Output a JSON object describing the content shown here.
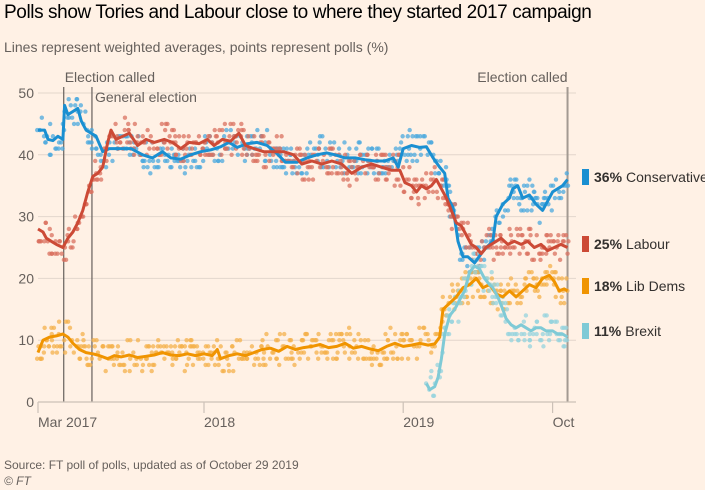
{
  "header": {
    "title": "Polls show Tories and Labour close to where they started 2017 campaign",
    "subtitle": "Lines represent weighted averages, points represent polls (%)"
  },
  "footer": {
    "source": "Source: FT poll of polls, updated as of October 29 2019",
    "copyright": "© FT"
  },
  "chart_data": {
    "type": "line",
    "title": "Polls show Tories and Labour close to where they started 2017 campaign",
    "subtitle": "Lines represent weighted averages, points represent polls (%)",
    "xlabel": "",
    "ylabel": "%",
    "x_unit": "months since 1 Mar 2017",
    "xlim": [
      0,
      31.9
    ],
    "ylim": [
      0,
      50
    ],
    "yticks": [
      0,
      10,
      20,
      30,
      40,
      50
    ],
    "xticks": [
      {
        "label": "Mar 2017",
        "x": 0
      },
      {
        "label": "2018",
        "x": 10
      },
      {
        "label": "2019",
        "x": 22
      },
      {
        "label": "Oct",
        "x": 31
      }
    ],
    "grid": true,
    "legend_placement": "right",
    "annotations": [
      {
        "label": "Election called",
        "x": 1.55,
        "align": "start"
      },
      {
        "label": "General election",
        "x": 3.25,
        "align": "start"
      },
      {
        "label": "Election called",
        "x": 31.9,
        "align": "end"
      }
    ],
    "series": [
      {
        "name": "Conservative",
        "legend_value": "36%",
        "color": "#1A8FD1",
        "dot_color": "#4BA8DE",
        "start_x": 0,
        "points": [
          [
            0,
            44
          ],
          [
            0.4,
            44
          ],
          [
            0.6,
            42.5
          ],
          [
            0.9,
            42.3
          ],
          [
            1.2,
            43
          ],
          [
            1.5,
            42.5
          ],
          [
            1.6,
            48
          ],
          [
            1.8,
            46.5
          ],
          [
            2.1,
            47
          ],
          [
            2.4,
            47.5
          ],
          [
            2.6,
            45.5
          ],
          [
            2.9,
            44
          ],
          [
            3.2,
            43.5
          ],
          [
            3.5,
            43
          ],
          [
            3.9,
            40.5
          ],
          [
            4.3,
            41
          ],
          [
            5,
            41
          ],
          [
            5.6,
            41
          ],
          [
            6.3,
            40
          ],
          [
            6.9,
            39.5
          ],
          [
            7.5,
            40.5
          ],
          [
            8,
            39.5
          ],
          [
            8.6,
            39.3
          ],
          [
            9.2,
            40
          ],
          [
            9.8,
            40.5
          ],
          [
            10.4,
            40.8
          ],
          [
            11,
            41.3
          ],
          [
            11.5,
            42
          ],
          [
            12,
            41.2
          ],
          [
            12.6,
            41.8
          ],
          [
            13.2,
            42
          ],
          [
            13.8,
            41.5
          ],
          [
            14.4,
            40.2
          ],
          [
            14.9,
            38.8
          ],
          [
            15.6,
            38.8
          ],
          [
            16.2,
            39.5
          ],
          [
            16.8,
            40
          ],
          [
            17.4,
            40.3
          ],
          [
            17.9,
            40
          ],
          [
            18.5,
            39.5
          ],
          [
            19.1,
            39.5
          ],
          [
            19.7,
            39.2
          ],
          [
            20.3,
            39
          ],
          [
            20.9,
            39
          ],
          [
            21.4,
            39.5
          ],
          [
            21.7,
            38
          ],
          [
            22,
            41
          ],
          [
            22.5,
            41.5
          ],
          [
            23,
            41.2
          ],
          [
            23.4,
            41.3
          ],
          [
            23.8,
            39.5
          ],
          [
            24.2,
            38
          ],
          [
            24.5,
            37
          ],
          [
            24.7,
            33
          ],
          [
            25,
            31.5
          ],
          [
            25.3,
            26
          ],
          [
            25.6,
            23.5
          ],
          [
            25.9,
            23.5
          ],
          [
            26.3,
            22.5
          ],
          [
            26.7,
            24
          ],
          [
            27,
            25
          ],
          [
            27.4,
            26
          ],
          [
            27.6,
            30
          ],
          [
            28,
            32
          ],
          [
            28.4,
            33
          ],
          [
            28.6,
            34.5
          ],
          [
            28.9,
            35
          ],
          [
            29.2,
            33
          ],
          [
            29.6,
            33.5
          ],
          [
            30,
            32
          ],
          [
            30.4,
            31
          ],
          [
            30.7,
            32.5
          ],
          [
            31,
            34
          ],
          [
            31.3,
            34.5
          ],
          [
            31.6,
            35
          ],
          [
            31.9,
            36
          ]
        ]
      },
      {
        "name": "Labour",
        "legend_value": "25%",
        "color": "#CC4A36",
        "dot_color": "#D9705F",
        "start_x": 0,
        "points": [
          [
            0,
            28
          ],
          [
            0.3,
            27.5
          ],
          [
            0.5,
            26.5
          ],
          [
            0.8,
            26
          ],
          [
            1.1,
            25.5
          ],
          [
            1.5,
            25
          ],
          [
            1.8,
            26.5
          ],
          [
            2.1,
            27.5
          ],
          [
            2.4,
            29
          ],
          [
            2.7,
            31
          ],
          [
            3,
            34
          ],
          [
            3.3,
            36.5
          ],
          [
            3.6,
            37
          ],
          [
            3.9,
            38
          ],
          [
            4.2,
            42
          ],
          [
            4.4,
            44
          ],
          [
            4.7,
            42.5
          ],
          [
            5.1,
            43
          ],
          [
            5.5,
            43.5
          ],
          [
            6,
            41.5
          ],
          [
            6.5,
            42.5
          ],
          [
            7,
            42
          ],
          [
            7.6,
            42.5
          ],
          [
            8.1,
            42
          ],
          [
            8.6,
            41
          ],
          [
            9.1,
            42
          ],
          [
            9.7,
            41.8
          ],
          [
            10.2,
            42.5
          ],
          [
            10.6,
            41.5
          ],
          [
            11.1,
            42.5
          ],
          [
            11.6,
            42.2
          ],
          [
            12.1,
            43.5
          ],
          [
            12.5,
            41.5
          ],
          [
            13,
            41
          ],
          [
            13.6,
            40.5
          ],
          [
            14.2,
            40.5
          ],
          [
            14.8,
            40.5
          ],
          [
            15.4,
            40
          ],
          [
            15.9,
            38.5
          ],
          [
            16.5,
            39
          ],
          [
            17.1,
            38.5
          ],
          [
            17.7,
            39
          ],
          [
            18.3,
            38.5
          ],
          [
            18.9,
            37
          ],
          [
            19.5,
            38
          ],
          [
            20.1,
            38.5
          ],
          [
            20.7,
            38
          ],
          [
            21.3,
            37.5
          ],
          [
            21.8,
            37.5
          ],
          [
            22.1,
            35.5
          ],
          [
            22.5,
            35
          ],
          [
            22.8,
            34
          ],
          [
            23.1,
            35
          ],
          [
            23.4,
            34.5
          ],
          [
            23.7,
            35
          ],
          [
            24,
            36
          ],
          [
            24.3,
            34.5
          ],
          [
            24.6,
            33
          ],
          [
            24.9,
            31
          ],
          [
            25.2,
            29
          ],
          [
            25.5,
            28.5
          ],
          [
            25.8,
            27
          ],
          [
            26.1,
            25.5
          ],
          [
            26.4,
            25
          ],
          [
            26.7,
            24
          ],
          [
            27,
            25
          ],
          [
            27.3,
            25.5
          ],
          [
            27.6,
            26
          ],
          [
            27.9,
            26.5
          ],
          [
            28.3,
            25.5
          ],
          [
            28.7,
            26
          ],
          [
            29.1,
            25.5
          ],
          [
            29.5,
            26
          ],
          [
            29.9,
            25
          ],
          [
            30.3,
            25.5
          ],
          [
            30.7,
            24.5
          ],
          [
            31.1,
            25
          ],
          [
            31.5,
            25.5
          ],
          [
            31.9,
            25
          ]
        ]
      },
      {
        "name": "Lib Dems",
        "legend_value": "18%",
        "color": "#F09400",
        "dot_color": "#F4B04B",
        "start_x": 0,
        "points": [
          [
            0,
            8
          ],
          [
            0.3,
            10
          ],
          [
            0.7,
            10.5
          ],
          [
            1.1,
            10.7
          ],
          [
            1.5,
            11
          ],
          [
            1.8,
            10.5
          ],
          [
            2.1,
            9.5
          ],
          [
            2.5,
            8.5
          ],
          [
            2.9,
            8
          ],
          [
            3.3,
            7.8
          ],
          [
            3.7,
            7.5
          ],
          [
            4.2,
            7
          ],
          [
            4.6,
            7.5
          ],
          [
            5,
            7.3
          ],
          [
            5.5,
            7.6
          ],
          [
            6,
            7.2
          ],
          [
            6.5,
            7.4
          ],
          [
            7,
            7.6
          ],
          [
            7.5,
            8
          ],
          [
            8,
            7.6
          ],
          [
            8.5,
            7.5
          ],
          [
            9,
            7.8
          ],
          [
            9.5,
            7.5
          ],
          [
            10,
            7.8
          ],
          [
            10.5,
            7.5
          ],
          [
            10.8,
            8.5
          ],
          [
            11,
            7
          ],
          [
            11.5,
            7.5
          ],
          [
            12,
            7.8
          ],
          [
            12.5,
            7.5
          ],
          [
            13,
            8
          ],
          [
            13.5,
            8.5
          ],
          [
            14,
            8.7
          ],
          [
            14.5,
            8.2
          ],
          [
            15,
            9
          ],
          [
            15.5,
            8.5
          ],
          [
            16,
            8.8
          ],
          [
            16.5,
            9
          ],
          [
            17,
            9.3
          ],
          [
            17.5,
            8.8
          ],
          [
            18,
            9
          ],
          [
            18.5,
            9.5
          ],
          [
            19,
            8.7
          ],
          [
            19.5,
            9
          ],
          [
            20,
            8.6
          ],
          [
            20.5,
            8.3
          ],
          [
            21,
            9
          ],
          [
            21.5,
            9.5
          ],
          [
            22,
            9
          ],
          [
            22.5,
            9.2
          ],
          [
            23,
            9.5
          ],
          [
            23.5,
            9.2
          ],
          [
            23.9,
            9.4
          ],
          [
            24.2,
            10.5
          ],
          [
            24.4,
            15
          ],
          [
            24.8,
            16
          ],
          [
            25.2,
            17
          ],
          [
            25.6,
            18.5
          ],
          [
            26,
            19
          ],
          [
            26.4,
            20
          ],
          [
            26.8,
            18.5
          ],
          [
            27.2,
            19
          ],
          [
            27.6,
            17.5
          ],
          [
            28,
            17
          ],
          [
            28.4,
            18
          ],
          [
            28.8,
            17
          ],
          [
            29.2,
            18
          ],
          [
            29.6,
            19
          ],
          [
            30,
            18.5
          ],
          [
            30.4,
            20
          ],
          [
            30.8,
            20.5
          ],
          [
            31.1,
            19.5
          ],
          [
            31.4,
            18
          ],
          [
            31.7,
            18.3
          ],
          [
            31.9,
            18
          ]
        ]
      },
      {
        "name": "Brexit",
        "legend_value": "11%",
        "color": "#7FCAD6",
        "dot_color": "#96D3DE",
        "start_x": 23.4,
        "points": [
          [
            23.4,
            3
          ],
          [
            23.6,
            2
          ],
          [
            23.9,
            2.5
          ],
          [
            24.1,
            4
          ],
          [
            24.3,
            7
          ],
          [
            24.5,
            11
          ],
          [
            24.8,
            14
          ],
          [
            25.1,
            15
          ],
          [
            25.4,
            16.5
          ],
          [
            25.7,
            18
          ],
          [
            26,
            21
          ],
          [
            26.3,
            22
          ],
          [
            26.6,
            21.5
          ],
          [
            26.9,
            20
          ],
          [
            27.2,
            19
          ],
          [
            27.4,
            18.5
          ],
          [
            27.7,
            17
          ],
          [
            28,
            15
          ],
          [
            28.2,
            13.5
          ],
          [
            28.5,
            12.5
          ],
          [
            28.8,
            12
          ],
          [
            29.1,
            12.5
          ],
          [
            29.4,
            12
          ],
          [
            29.7,
            11.5
          ],
          [
            30,
            12
          ],
          [
            30.3,
            12
          ],
          [
            30.6,
            11.5
          ],
          [
            31,
            11.5
          ],
          [
            31.3,
            11
          ],
          [
            31.6,
            11
          ],
          [
            31.9,
            10.5
          ]
        ]
      }
    ]
  }
}
